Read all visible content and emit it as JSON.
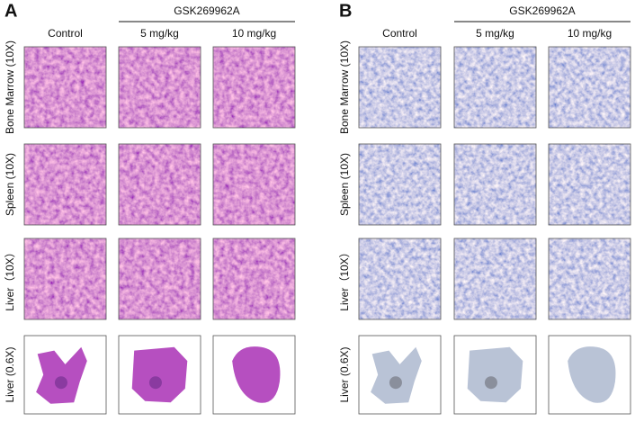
{
  "panels": [
    {
      "label": "A",
      "group": "GSK269962A",
      "columns": [
        "Control",
        "5 mg/kg",
        "10 mg/kg"
      ],
      "rows": [
        "Bone Marrow (10X)",
        "Spleen (10X)",
        "Liver（10X）",
        "Liver (0.6X)"
      ]
    },
    {
      "label": "B",
      "group": "GSK269962A",
      "columns": [
        "Control",
        "5 mg/kg",
        "10 mg/kg"
      ],
      "rows": [
        "Bone Marrow (10X)",
        "Spleen (10X)",
        "Liver（10X）",
        "Liver (0.6X)"
      ]
    }
  ]
}
